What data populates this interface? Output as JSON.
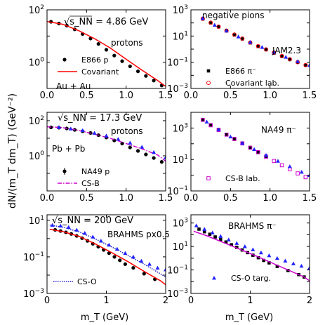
{
  "figure": {
    "ylabel": "dN/(m_T dm_T) (GeV⁻²)",
    "xlabel_bottom": "m_T (GeV)"
  },
  "chart_data": [
    {
      "type": "scatter",
      "panel": "top-left",
      "scale_y": "log",
      "xlim": [
        0,
        1.5
      ],
      "ylim": [
        0.1,
        100
      ],
      "xticks": [
        "0.0",
        "0.5",
        "1.0",
        "1.5"
      ],
      "yticks": [
        "10^-1|hidden",
        "10^0",
        "10^2"
      ],
      "texts": [
        "√s_NN = 4.86 GeV",
        "protons",
        "Au + Au"
      ],
      "legend": [
        {
          "label": "E866 p",
          "marker": "dot",
          "color": "#000000"
        },
        {
          "label": "Covariant",
          "marker": "line",
          "color": "#ff0000"
        }
      ],
      "series": [
        {
          "name": "E866 p",
          "color": "#000000",
          "marker": "dot",
          "x": [
            0.05,
            0.15,
            0.25,
            0.35,
            0.45,
            0.55,
            0.65,
            0.75,
            0.85,
            0.95,
            1.05,
            1.15,
            1.25,
            1.35,
            1.45
          ],
          "y": [
            35,
            30,
            25,
            18,
            12,
            8,
            5,
            3,
            1.8,
            1.1,
            0.7,
            0.45,
            0.3,
            0.2,
            0.13
          ]
        },
        {
          "name": "Covariant",
          "color": "#ff0000",
          "marker": "line",
          "x": [
            0.0,
            0.2,
            0.4,
            0.6,
            0.8,
            1.0,
            1.2,
            1.4,
            1.5
          ],
          "y": [
            36,
            28,
            16,
            8,
            3.5,
            1.3,
            0.5,
            0.2,
            0.12
          ]
        }
      ]
    },
    {
      "type": "scatter",
      "panel": "top-right",
      "scale_y": "log",
      "xlim": [
        0,
        1.5
      ],
      "ylim": [
        0.001,
        1000
      ],
      "xticks": [
        "0.0",
        "0.5",
        "1.0",
        "1.5"
      ],
      "yticks": [
        "10^-3",
        "10^-1",
        "10^1",
        "10^3"
      ],
      "texts": [
        "negative pions",
        "JAM2.3"
      ],
      "legend": [
        {
          "label": "E866 π⁻",
          "marker": "square",
          "color": "#000000"
        },
        {
          "label": "Covariant lab.",
          "marker": "open-circle",
          "color": "#ff0000"
        }
      ],
      "series": [
        {
          "name": "E866 π⁻",
          "color": "#000000",
          "marker": "square",
          "x": [
            0.15,
            0.25,
            0.35,
            0.45,
            0.55,
            0.65,
            0.75,
            0.85,
            0.95,
            1.05,
            1.15,
            1.25,
            1.35,
            1.45
          ],
          "y": [
            200,
            100,
            50,
            25,
            12,
            6,
            3,
            1.6,
            0.9,
            0.5,
            0.28,
            0.16,
            0.1,
            0.06
          ]
        },
        {
          "name": "Covariant lab.",
          "color": "#ff0000",
          "marker": "open-circle",
          "x": [
            0.15,
            0.25,
            0.35,
            0.45,
            0.55,
            0.65,
            0.75,
            0.85,
            0.95,
            1.05,
            1.15,
            1.25,
            1.35,
            1.45
          ],
          "y": [
            210,
            105,
            52,
            26,
            13,
            6.5,
            3.2,
            1.7,
            0.95,
            0.55,
            0.3,
            0.17,
            0.1,
            0.06
          ]
        },
        {
          "name": "",
          "color": "#2222ff",
          "marker": "triangle",
          "x": [
            0.15,
            0.3,
            0.45,
            0.6,
            0.75,
            0.9,
            1.05,
            1.2,
            1.35,
            1.5
          ],
          "y": [
            230,
            70,
            25,
            9,
            3.4,
            1.4,
            0.6,
            0.25,
            0.12,
            0.06
          ]
        }
      ]
    },
    {
      "type": "scatter",
      "panel": "mid-left",
      "scale_y": "log",
      "xlim": [
        0,
        1.5
      ],
      "ylim": [
        0.01,
        300
      ],
      "xticks": [
        "0.0",
        "0.5",
        "1.0",
        "1.5"
      ],
      "yticks": [
        "10^0",
        "10^2"
      ],
      "texts": [
        "√s_NN = 17.3 GeV",
        "protons",
        "Pb + Pb"
      ],
      "legend": [
        {
          "label": "NA49 p",
          "marker": "dot-err",
          "color": "#000000"
        },
        {
          "label": "CS-B",
          "marker": "dashdot",
          "color": "#cc00cc"
        }
      ],
      "series": [
        {
          "name": "NA49 p",
          "color": "#000000",
          "marker": "dot",
          "x": [
            0.05,
            0.15,
            0.25,
            0.35,
            0.45,
            0.55,
            0.65,
            0.75,
            0.85,
            0.95,
            1.05,
            1.15,
            1.25,
            1.35,
            1.45
          ],
          "y": [
            42,
            40,
            36,
            30,
            25,
            20,
            15,
            11,
            7.5,
            5,
            3,
            1.9,
            1.2,
            0.75,
            0.45
          ]
        },
        {
          "name": "CS-B",
          "color": "#cc00cc",
          "marker": "dashdot",
          "x": [
            0.0,
            0.2,
            0.4,
            0.6,
            0.8,
            1.0,
            1.2,
            1.4,
            1.5
          ],
          "y": [
            45,
            40,
            28,
            17,
            10,
            5,
            2.5,
            1.1,
            0.5
          ]
        },
        {
          "name": "",
          "color": "#2222ff",
          "marker": "triangle",
          "x": [
            0.15,
            0.3,
            0.45,
            0.6,
            0.75,
            0.9,
            1.05,
            1.2,
            1.35,
            1.5
          ],
          "y": [
            42,
            35,
            28,
            20,
            14,
            9,
            5.5,
            3.2,
            1.6,
            0.8
          ]
        }
      ]
    },
    {
      "type": "scatter",
      "panel": "mid-right",
      "scale_y": "log",
      "xlim": [
        0,
        1.5
      ],
      "ylim": [
        0.1,
        10000
      ],
      "xticks": [
        "0.0",
        "0.5",
        "1.0",
        "1.5"
      ],
      "yticks": [
        "10^-1",
        "10^1",
        "10^3"
      ],
      "texts": [
        "NA49 π⁻"
      ],
      "legend": [
        {
          "label": "CS-B lab.",
          "marker": "open-square",
          "color": "#cc00cc"
        }
      ],
      "series": [
        {
          "name": "NA49 π⁻",
          "color": "#000000",
          "marker": "square",
          "x": [
            0.15,
            0.25,
            0.35,
            0.45,
            0.55,
            0.65,
            0.75,
            0.85,
            0.95
          ],
          "y": [
            3500,
            1600,
            800,
            400,
            210,
            110,
            58,
            30,
            16
          ]
        },
        {
          "name": "CS-B lab.",
          "color": "#cc00cc",
          "marker": "open-square",
          "x": [
            0.15,
            0.25,
            0.35,
            0.45,
            0.55,
            0.65,
            0.75,
            0.85,
            0.95,
            1.05,
            1.15,
            1.25,
            1.35,
            1.45
          ],
          "y": [
            3300,
            1500,
            750,
            380,
            200,
            105,
            56,
            29,
            15,
            8,
            4.3,
            2.4,
            1.3,
            0.75
          ]
        },
        {
          "name": "",
          "color": "#2222ff",
          "marker": "triangle",
          "x": [
            0.2,
            0.35,
            0.5,
            0.65,
            0.8,
            0.95,
            1.1,
            1.25,
            1.4,
            1.5
          ],
          "y": [
            2500,
            800,
            280,
            110,
            45,
            19,
            8,
            3.6,
            1.6,
            1.0
          ]
        }
      ]
    },
    {
      "type": "scatter",
      "panel": "bottom-left",
      "scale_y": "log",
      "xlim": [
        0,
        2.2
      ],
      "ylim": [
        0.001,
        20
      ],
      "xticks": [
        "0",
        "1",
        "2"
      ],
      "yticks": [
        "10^-3",
        "10^-1",
        "10^1"
      ],
      "texts": [
        "√s_NN = 200 GeV",
        "BRAHMS px0.5"
      ],
      "legend": [
        {
          "label": "CS-O",
          "marker": "dotted",
          "color": "#2222cc"
        }
      ],
      "series": [
        {
          "name": "BRAHMS px0.5",
          "color": "#000000",
          "marker": "dot",
          "x": [
            0.15,
            0.25,
            0.35,
            0.45,
            0.55,
            0.65,
            0.75,
            0.85,
            0.95,
            1.05,
            1.15,
            1.25,
            1.35,
            1.45,
            1.6,
            1.8,
            2.0
          ],
          "y": [
            3,
            2.6,
            2.2,
            1.8,
            1.4,
            1.05,
            0.75,
            0.52,
            0.36,
            0.24,
            0.16,
            0.1,
            0.065,
            0.04,
            0.025,
            0.012,
            0.006
          ]
        },
        {
          "name": "",
          "color": "#ff0000",
          "marker": "line",
          "x": [
            0.05,
            0.3,
            0.6,
            0.9,
            1.2,
            1.5,
            1.8,
            2.1,
            2.2
          ],
          "y": [
            3.2,
            2.4,
            1.3,
            0.5,
            0.17,
            0.055,
            0.016,
            0.005,
            0.003
          ]
        },
        {
          "name": "CS-O",
          "color": "#2222cc",
          "marker": "dotted",
          "x": [
            0.05,
            0.3,
            0.6,
            0.9,
            1.2,
            1.5,
            1.8,
            2.1,
            2.2
          ],
          "y": [
            5.5,
            4.2,
            2.3,
            0.95,
            0.35,
            0.12,
            0.04,
            0.012,
            0.008
          ]
        },
        {
          "name": "",
          "color": "#2222ff",
          "marker": "triangle",
          "x": [
            0.1,
            0.25,
            0.4,
            0.55,
            0.7,
            0.85,
            1.0,
            1.15,
            1.3,
            1.45,
            1.6,
            1.75,
            1.9,
            2.05,
            2.2
          ],
          "y": [
            5.5,
            5,
            4.2,
            3,
            2,
            1.25,
            0.75,
            0.45,
            0.27,
            0.16,
            0.1,
            0.06,
            0.04,
            0.025,
            0.02
          ]
        }
      ]
    },
    {
      "type": "scatter",
      "panel": "bottom-right",
      "scale_y": "log",
      "xlim": [
        0,
        2.2
      ],
      "ylim": [
        0.001,
        5000
      ],
      "xticks": [
        "0",
        "1",
        "2"
      ],
      "yticks": [
        "10^-3",
        "10^-1",
        "10^1",
        "10^3"
      ],
      "texts": [
        "BRAHMS π⁻"
      ],
      "legend": [
        {
          "label": "CS-O targ.",
          "marker": "triangle",
          "color": "#2222ff"
        }
      ],
      "series": [
        {
          "name": "BRAHMS π⁻",
          "color": "#000000",
          "marker": "square",
          "x": [
            0.15,
            0.25,
            0.35,
            0.45,
            0.55,
            0.65,
            0.75,
            0.85,
            0.95,
            1.05,
            1.15,
            1.25,
            1.35,
            1.45,
            1.6,
            1.8,
            2.0,
            2.1
          ],
          "y": [
            300,
            180,
            110,
            65,
            40,
            24,
            14,
            8.5,
            5,
            3,
            1.8,
            1.1,
            0.65,
            0.4,
            0.2,
            0.09,
            0.04,
            0.025
          ]
        },
        {
          "name": "",
          "color": "#cc00cc",
          "marker": "line",
          "x": [
            0.05,
            0.3,
            0.6,
            0.9,
            1.2,
            1.5,
            1.8,
            2.1,
            2.2
          ],
          "y": [
            200,
            80,
            22,
            6,
            1.6,
            0.4,
            0.1,
            0.025,
            0.012
          ]
        },
        {
          "name": "CS-O targ.",
          "color": "#2222ff",
          "marker": "triangle",
          "x": [
            0.1,
            0.25,
            0.4,
            0.55,
            0.7,
            0.85,
            1.0,
            1.15,
            1.3,
            1.45,
            1.6,
            1.75,
            1.9,
            2.05,
            2.2
          ],
          "y": [
            600,
            300,
            150,
            75,
            38,
            19,
            10,
            5.5,
            3,
            1.7,
            1,
            0.6,
            0.35,
            0.22,
            0.15
          ]
        }
      ]
    }
  ]
}
